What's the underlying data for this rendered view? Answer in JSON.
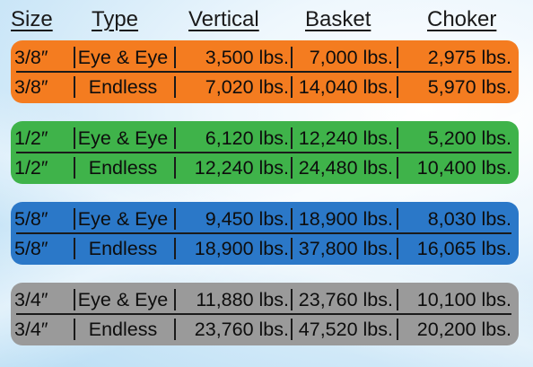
{
  "header": {
    "size": "Size",
    "type": "Type",
    "vertical": "Vertical",
    "basket": "Basket",
    "choker": "Choker"
  },
  "colors": {
    "orange": "#f47c20",
    "green": "#3fb34a",
    "blue": "#2b78c8",
    "gray": "#9a9a9a"
  },
  "groups": [
    {
      "color": "orange",
      "rows": [
        {
          "size": "3/8″",
          "type": "Eye & Eye",
          "vertical": "3,500 lbs.",
          "basket": "7,000 lbs.",
          "choker": "2,975 lbs."
        },
        {
          "size": "3/8″",
          "type": "Endless",
          "vertical": "7,020 lbs.",
          "basket": "14,040 lbs.",
          "choker": "5,970 lbs."
        }
      ]
    },
    {
      "color": "green",
      "rows": [
        {
          "size": "1/2″",
          "type": "Eye & Eye",
          "vertical": "6,120 lbs.",
          "basket": "12,240 lbs.",
          "choker": "5,200 lbs."
        },
        {
          "size": "1/2″",
          "type": "Endless",
          "vertical": "12,240 lbs.",
          "basket": "24,480 lbs.",
          "choker": "10,400 lbs."
        }
      ]
    },
    {
      "color": "blue",
      "rows": [
        {
          "size": "5/8″",
          "type": "Eye & Eye",
          "vertical": "9,450 lbs.",
          "basket": "18,900 lbs.",
          "choker": "8,030 lbs."
        },
        {
          "size": "5/8″",
          "type": "Endless",
          "vertical": "18,900 lbs.",
          "basket": "37,800 lbs.",
          "choker": "16,065 lbs."
        }
      ]
    },
    {
      "color": "gray",
      "rows": [
        {
          "size": "3/4″",
          "type": "Eye & Eye",
          "vertical": "11,880 lbs.",
          "basket": "23,760 lbs.",
          "choker": "10,100 lbs."
        },
        {
          "size": "3/4″",
          "type": "Endless",
          "vertical": "23,760 lbs.",
          "basket": "47,520 lbs.",
          "choker": "20,200 lbs."
        }
      ]
    }
  ]
}
